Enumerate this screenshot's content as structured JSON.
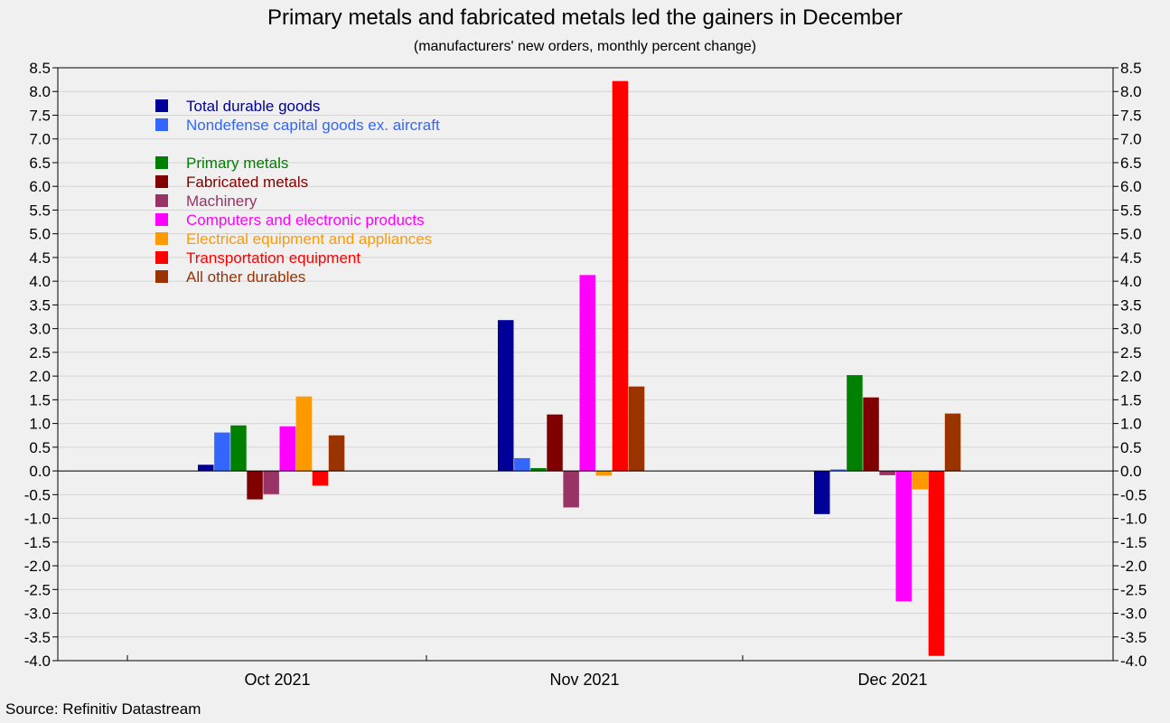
{
  "title": "Primary metals and fabricated metals led the gainers in December",
  "subtitle": "(manufacturers' new orders, monthly percent change)",
  "source": "Source: Refinitiv Datastream",
  "chart_data": {
    "type": "bar",
    "title": "Primary metals and fabricated metals led the gainers in December",
    "subtitle": "(manufacturers' new orders, monthly percent change)",
    "xlabel": "",
    "ylabel": "",
    "ylim": [
      -4.0,
      8.5
    ],
    "ytick_step": 0.5,
    "grid": true,
    "legend_position": "top-left",
    "categories": [
      "Oct 2021",
      "Nov 2021",
      "Dec 2021"
    ],
    "series": [
      {
        "name": "Total durable goods",
        "color": "#000099",
        "values": [
          0.13,
          3.18,
          -0.91
        ]
      },
      {
        "name": "Nondefense capital goods ex. aircraft",
        "color": "#3366ff",
        "values": [
          0.81,
          0.27,
          0.03
        ]
      },
      {
        "name": "Primary metals",
        "color": "#008000",
        "values": [
          0.96,
          0.06,
          2.02
        ]
      },
      {
        "name": "Fabricated metals",
        "color": "#800000",
        "values": [
          -0.6,
          1.19,
          1.55
        ]
      },
      {
        "name": "Machinery",
        "color": "#993366",
        "values": [
          -0.49,
          -0.77,
          -0.09
        ]
      },
      {
        "name": "Computers and electronic products",
        "color": "#ff00ff",
        "values": [
          0.94,
          4.13,
          -2.75
        ]
      },
      {
        "name": "Electrical equipment and appliances",
        "color": "#ff9900",
        "values": [
          1.57,
          -0.1,
          -0.39
        ]
      },
      {
        "name": "Transportation equipment",
        "color": "#ff0000",
        "values": [
          -0.31,
          8.22,
          -3.9
        ]
      },
      {
        "name": "All other durables",
        "color": "#993300",
        "values": [
          0.75,
          1.78,
          1.21
        ]
      }
    ]
  }
}
